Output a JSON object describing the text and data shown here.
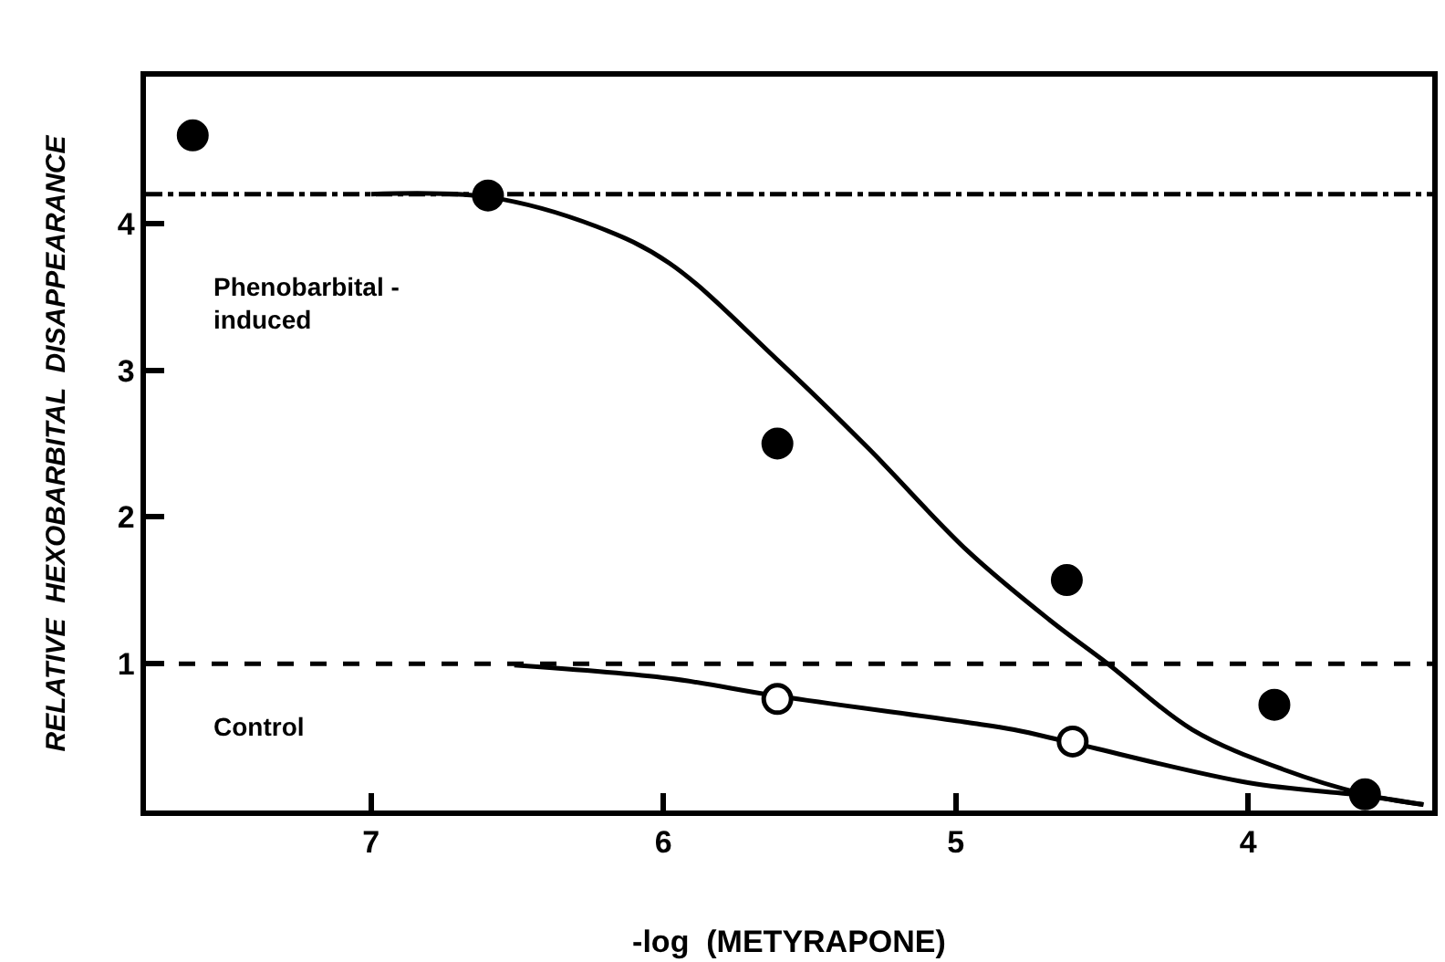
{
  "chart_data": {
    "type": "scatter",
    "xlabel": "-log  (METYRAPONE)",
    "ylabel": "RELATIVE  HEXOBARBITAL  DISAPPEARANCE",
    "xlim": [
      7.77,
      3.37
    ],
    "ylim": [
      0,
      5
    ],
    "xticks": [
      7,
      6,
      5,
      4
    ],
    "yticks": [
      1,
      2,
      3,
      4
    ],
    "legend": false,
    "marker": "circle",
    "series": [
      {
        "type": "line",
        "color": "#000000",
        "marker": "none",
        "x": [
          7.0,
          6.6,
          6.23,
          5.98,
          5.61,
          5.3,
          4.96,
          4.68,
          4.48,
          4.19,
          3.88,
          3.6,
          3.4
        ],
        "values": [
          4.2,
          4.18,
          3.98,
          3.73,
          3.07,
          2.47,
          1.77,
          1.3,
          1.0,
          0.55,
          0.28,
          0.11,
          0.04
        ]
      },
      {
        "type": "line",
        "color": "#000000",
        "marker": "none",
        "x": [
          6.51,
          5.98,
          5.61,
          4.96,
          4.8,
          4.6,
          4.0,
          3.6,
          3.4
        ],
        "values": [
          0.99,
          0.9,
          0.78,
          0.6,
          0.55,
          0.46,
          0.19,
          0.1,
          0.04
        ]
      },
      {
        "color": "#000000",
        "x": [
          7.61,
          6.6,
          5.61,
          4.62,
          3.91,
          3.6
        ],
        "values": [
          4.6,
          4.19,
          2.5,
          1.57,
          0.72,
          0.11
        ]
      },
      {
        "color": "#ffffff",
        "x": [
          5.61,
          4.6
        ],
        "values": [
          0.76,
          0.47
        ]
      }
    ],
    "ref_lines": [
      {
        "axis": "y",
        "value": 4.2,
        "line_style": "dashdot"
      },
      {
        "axis": "y",
        "value": 1,
        "line_style": "dashed"
      }
    ],
    "annotations": [
      "Phenobarbital -\ninduced",
      "Control"
    ]
  }
}
